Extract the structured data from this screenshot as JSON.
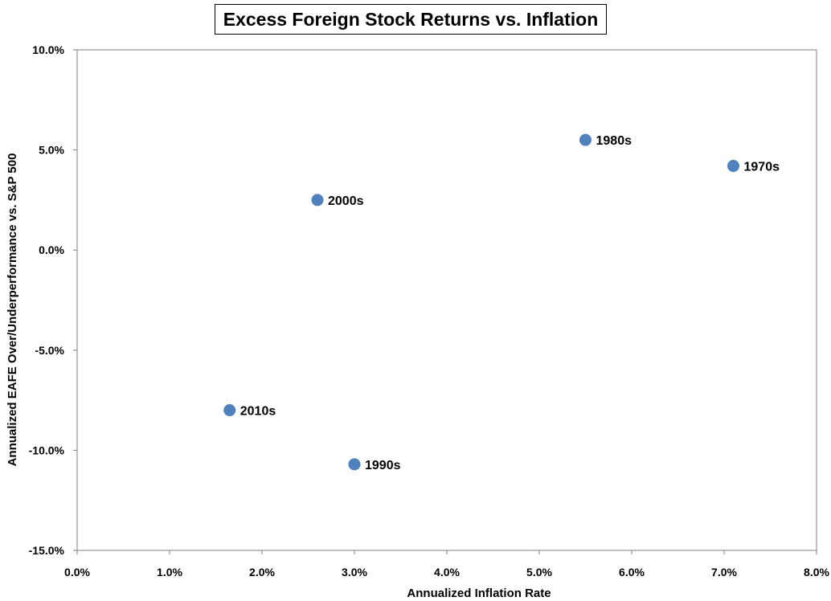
{
  "chart_data": {
    "type": "scatter",
    "title": "Excess Foreign Stock Returns vs. Inflation",
    "xlabel": "Annualized Inflation Rate",
    "ylabel": "Annualized EAFE Over/Underperformance vs. S&P 500",
    "xlim": [
      0,
      8
    ],
    "ylim": [
      -15,
      10
    ],
    "xticks": [
      0,
      1,
      2,
      3,
      4,
      5,
      6,
      7,
      8
    ],
    "yticks": [
      -15,
      -10,
      -5,
      0,
      5,
      10
    ],
    "xtick_labels": [
      "0.0%",
      "1.0%",
      "2.0%",
      "3.0%",
      "4.0%",
      "5.0%",
      "6.0%",
      "7.0%",
      "8.0%"
    ],
    "ytick_labels": [
      "-15.0%",
      "-10.0%",
      "-5.0%",
      "0.0%",
      "5.0%",
      "10.0%"
    ],
    "grid": false,
    "legend": "none",
    "marker_color": "#4F81BD",
    "points": [
      {
        "label": "1970s",
        "x": 7.1,
        "y": 4.2
      },
      {
        "label": "1980s",
        "x": 5.5,
        "y": 5.5
      },
      {
        "label": "1990s",
        "x": 3.0,
        "y": -10.7
      },
      {
        "label": "2000s",
        "x": 2.6,
        "y": 2.5
      },
      {
        "label": "2010s",
        "x": 1.65,
        "y": -8.0
      }
    ]
  }
}
